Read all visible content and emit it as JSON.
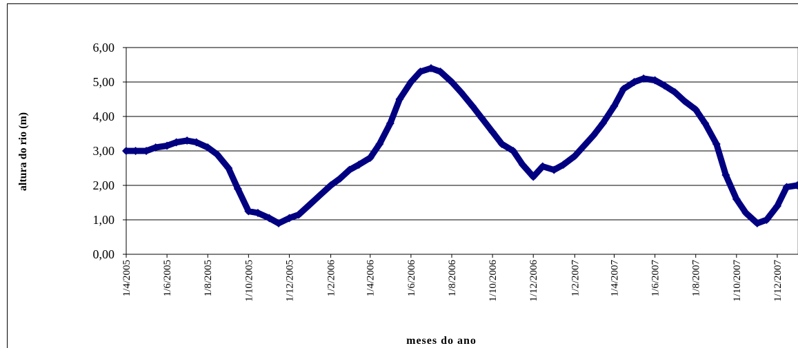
{
  "chart_data": {
    "type": "line",
    "x_label": "meses do ano",
    "y_label": "altura do rio (m)",
    "x": [
      "2005-04-01",
      "2005-04-15",
      "2005-05-01",
      "2005-05-15",
      "2005-06-01",
      "2005-06-15",
      "2005-07-01",
      "2005-07-15",
      "2005-08-01",
      "2005-08-15",
      "2005-09-01",
      "2005-09-15",
      "2005-10-01",
      "2005-10-15",
      "2005-11-01",
      "2005-11-15",
      "2005-12-01",
      "2005-12-15",
      "2006-01-01",
      "2006-01-15",
      "2006-02-01",
      "2006-02-15",
      "2006-03-01",
      "2006-03-15",
      "2006-04-01",
      "2006-04-15",
      "2006-05-01",
      "2006-05-15",
      "2006-06-01",
      "2006-06-15",
      "2006-07-01",
      "2006-07-15",
      "2006-08-01",
      "2006-08-15",
      "2006-09-01",
      "2006-09-15",
      "2006-10-01",
      "2006-10-15",
      "2006-11-01",
      "2006-11-15",
      "2006-12-01",
      "2006-12-15",
      "2007-01-01",
      "2007-01-15",
      "2007-02-01",
      "2007-02-15",
      "2007-03-01",
      "2007-03-15",
      "2007-04-01",
      "2007-04-15",
      "2007-05-01",
      "2007-05-15",
      "2007-06-01",
      "2007-06-15",
      "2007-07-01",
      "2007-07-15",
      "2007-08-01",
      "2007-08-15",
      "2007-09-01",
      "2007-09-15",
      "2007-10-01",
      "2007-10-15",
      "2007-11-01",
      "2007-11-15",
      "2007-12-01",
      "2007-12-15",
      "2007-12-31"
    ],
    "series": [
      {
        "color": "#000080",
        "values": [
          3.0,
          3.0,
          3.0,
          3.1,
          3.15,
          3.25,
          3.3,
          3.25,
          3.1,
          2.9,
          2.5,
          1.9,
          1.25,
          1.2,
          1.05,
          0.9,
          1.05,
          1.15,
          1.45,
          1.7,
          2.0,
          2.2,
          2.45,
          2.6,
          2.8,
          3.2,
          3.8,
          4.5,
          5.0,
          5.3,
          5.4,
          5.3,
          5.0,
          4.7,
          4.3,
          3.95,
          3.55,
          3.2,
          3.0,
          2.6,
          2.25,
          2.55,
          2.45,
          2.6,
          2.85,
          3.15,
          3.45,
          3.8,
          4.3,
          4.8,
          5.0,
          5.1,
          5.05,
          4.9,
          4.7,
          4.45,
          4.2,
          3.8,
          3.2,
          2.3,
          1.6,
          1.2,
          0.9,
          1.0,
          1.4,
          1.95,
          2.0
        ]
      }
    ],
    "xlim": [
      "2005-04-01",
      "2008-01-01"
    ],
    "xticks": [
      {
        "value": "2005-04-01",
        "label": "1/4/2005"
      },
      {
        "value": "2005-06-01",
        "label": "1/6/2005"
      },
      {
        "value": "2005-08-01",
        "label": "1/8/2005"
      },
      {
        "value": "2005-10-01",
        "label": "1/10/2005"
      },
      {
        "value": "2005-12-01",
        "label": "1/12/2005"
      },
      {
        "value": "2006-02-01",
        "label": "1/2/2006"
      },
      {
        "value": "2006-04-01",
        "label": "1/4/2006"
      },
      {
        "value": "2006-06-01",
        "label": "1/6/2006"
      },
      {
        "value": "2006-08-01",
        "label": "1/8/2006"
      },
      {
        "value": "2006-10-01",
        "label": "1/10/2006"
      },
      {
        "value": "2006-12-01",
        "label": "1/12/2006"
      },
      {
        "value": "2007-02-01",
        "label": "1/2/2007"
      },
      {
        "value": "2007-04-01",
        "label": "1/4/2007"
      },
      {
        "value": "2007-06-01",
        "label": "1/6/2007"
      },
      {
        "value": "2007-08-01",
        "label": "1/8/2007"
      },
      {
        "value": "2007-10-01",
        "label": "1/10/2007"
      },
      {
        "value": "2007-12-01",
        "label": "1/12/2007"
      }
    ],
    "ylim": [
      0,
      6
    ],
    "yticks": [
      {
        "value": 0,
        "label": "0,00"
      },
      {
        "value": 1,
        "label": "1,00"
      },
      {
        "value": 2,
        "label": "2,00"
      },
      {
        "value": 3,
        "label": "3,00"
      },
      {
        "value": 4,
        "label": "4,00"
      },
      {
        "value": 5,
        "label": "5,00"
      },
      {
        "value": 6,
        "label": "6,00"
      }
    ],
    "grid": true
  }
}
